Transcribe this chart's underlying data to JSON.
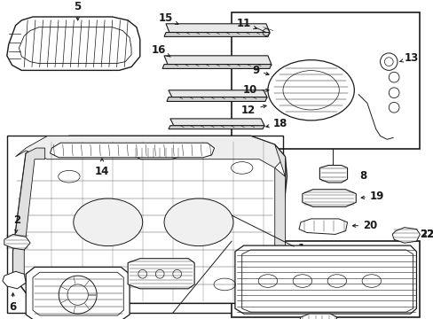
{
  "bg_color": "#ffffff",
  "line_color": "#1a1a1a",
  "fs": 8.5,
  "fig_w": 4.89,
  "fig_h": 3.6,
  "dpi": 100,
  "xmax": 489,
  "ymax": 360
}
